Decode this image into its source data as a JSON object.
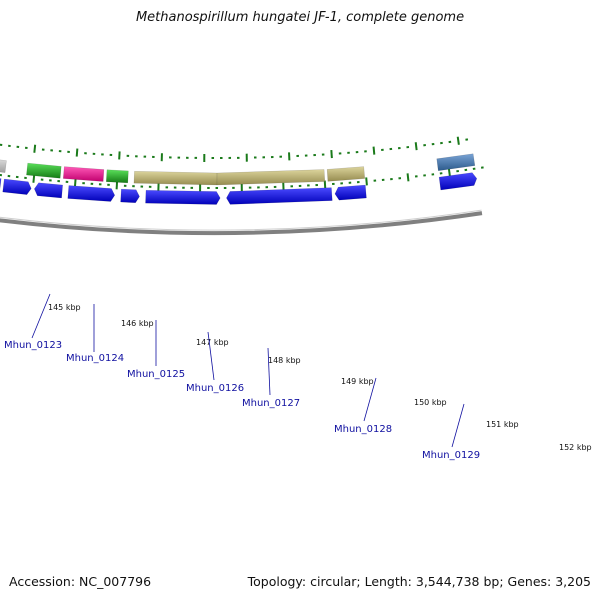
{
  "title": "Methanospirillum hungatei JF-1, complete genome",
  "footer": {
    "accession": "Accession: NC_007796",
    "summary": "Topology: circular; Length: 3,544,738 bp; Genes: 3,205"
  },
  "colors": {
    "backbone": "#808080",
    "tick": "#1a7a1a",
    "gene_blue": "#1010ee",
    "gene_gray": "#c8c8c8",
    "gene_green": "#2bb52b",
    "gene_magenta": "#f01e96",
    "gene_khaki": "#c3b97a",
    "gene_steel": "#4a7ab0",
    "label": "#1010a0"
  },
  "kbp_labels": [
    "145 kbp",
    "146 kbp",
    "147 kbp",
    "148 kbp",
    "149 kbp",
    "150 kbp",
    "151 kbp",
    "152 kbp"
  ],
  "gene_labels": [
    "Mhun_0123",
    "Mhun_0124",
    "Mhun_0125",
    "Mhun_0126",
    "Mhun_0127",
    "Mhun_0128",
    "Mhun_0129"
  ]
}
